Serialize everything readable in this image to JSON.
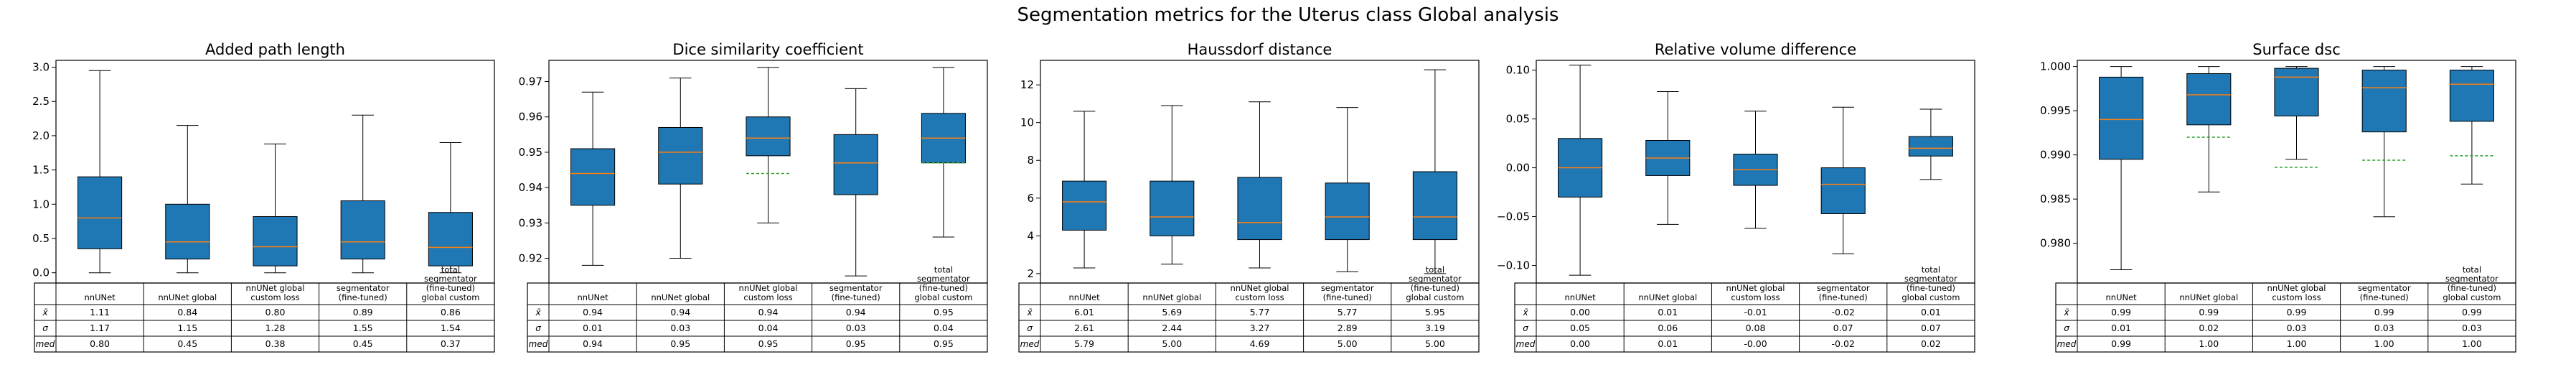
{
  "figure": {
    "suptitle": "Segmentation metrics for the Uterus class Global analysis"
  },
  "colors": {
    "box_fill": "#1f77b4",
    "median_line": "#ff7f0e",
    "mean_line": "#2ca02c",
    "edge": "#000000"
  },
  "table": {
    "row_labels": [
      "x̄",
      "σ",
      "med"
    ],
    "categories": [
      "nnUNet",
      "nnUNet global",
      "nnUNet global\ncustom loss",
      "segmentator\n(fine-tuned)",
      "total\nsegmentator\n(fine-tuned)\nglobal custom"
    ]
  },
  "chart_data": [
    {
      "type": "box",
      "title": "Added path length",
      "categories": [
        "nnUNet",
        "nnUNet global",
        "nnUNet global custom loss",
        "segmentator (fine-tuned)",
        "total segmentator (fine-tuned) global custom"
      ],
      "ylim": [
        -0.15,
        3.1
      ],
      "yticks": [
        "0.0",
        "0.5",
        "1.0",
        "1.5",
        "2.0",
        "2.5",
        "3.0"
      ],
      "boxes": [
        {
          "whislo": 0.0,
          "q1": 0.35,
          "med": 0.8,
          "q3": 1.4,
          "whishi": 2.95,
          "mean": null
        },
        {
          "whislo": 0.0,
          "q1": 0.2,
          "med": 0.45,
          "q3": 1.0,
          "whishi": 2.15,
          "mean": null
        },
        {
          "whislo": 0.0,
          "q1": 0.1,
          "med": 0.38,
          "q3": 0.82,
          "whishi": 1.88,
          "mean": null
        },
        {
          "whislo": 0.0,
          "q1": 0.2,
          "med": 0.45,
          "q3": 1.05,
          "whishi": 2.3,
          "mean": null
        },
        {
          "whislo": 0.0,
          "q1": 0.1,
          "med": 0.37,
          "q3": 0.88,
          "whishi": 1.9,
          "mean": null
        }
      ],
      "table_rows": [
        [
          "1.11",
          "0.84",
          "0.80",
          "0.89",
          "0.86"
        ],
        [
          "1.17",
          "1.15",
          "1.28",
          "1.55",
          "1.54"
        ],
        [
          "0.80",
          "0.45",
          "0.38",
          "0.45",
          "0.37"
        ]
      ]
    },
    {
      "type": "box",
      "title": "Dice similarity coefficient",
      "categories": [
        "nnUNet",
        "nnUNet global",
        "nnUNet global custom loss",
        "segmentator (fine-tuned)",
        "total segmentator (fine-tuned) global custom"
      ],
      "ylim": [
        0.913,
        0.976
      ],
      "yticks": [
        "0.92",
        "0.93",
        "0.94",
        "0.95",
        "0.96",
        "0.97"
      ],
      "boxes": [
        {
          "whislo": 0.918,
          "q1": 0.935,
          "med": 0.944,
          "q3": 0.951,
          "whishi": 0.967,
          "mean": null
        },
        {
          "whislo": 0.92,
          "q1": 0.941,
          "med": 0.95,
          "q3": 0.957,
          "whishi": 0.971,
          "mean": null
        },
        {
          "whislo": 0.93,
          "q1": 0.949,
          "med": 0.954,
          "q3": 0.96,
          "whishi": 0.974,
          "mean": 0.944
        },
        {
          "whislo": 0.915,
          "q1": 0.938,
          "med": 0.947,
          "q3": 0.955,
          "whishi": 0.968,
          "mean": null
        },
        {
          "whislo": 0.926,
          "q1": 0.947,
          "med": 0.954,
          "q3": 0.961,
          "whishi": 0.974,
          "mean": 0.947
        }
      ],
      "table_rows": [
        [
          "0.94",
          "0.94",
          "0.94",
          "0.94",
          "0.95"
        ],
        [
          "0.01",
          "0.03",
          "0.04",
          "0.03",
          "0.04"
        ],
        [
          "0.94",
          "0.95",
          "0.95",
          "0.95",
          "0.95"
        ]
      ]
    },
    {
      "type": "box",
      "title": "Haussdorf distance",
      "categories": [
        "nnUNet",
        "nnUNet global",
        "nnUNet global custom loss",
        "segmentator (fine-tuned)",
        "total segmentator (fine-tuned) global custom"
      ],
      "ylim": [
        1.5,
        13.3
      ],
      "yticks": [
        "2",
        "4",
        "6",
        "8",
        "10",
        "12"
      ],
      "boxes": [
        {
          "whislo": 2.3,
          "q1": 4.3,
          "med": 5.8,
          "q3": 6.9,
          "whishi": 10.6,
          "mean": null
        },
        {
          "whislo": 2.5,
          "q1": 4.0,
          "med": 5.0,
          "q3": 6.9,
          "whishi": 10.9,
          "mean": null
        },
        {
          "whislo": 2.3,
          "q1": 3.8,
          "med": 4.7,
          "q3": 7.1,
          "whishi": 11.1,
          "mean": null
        },
        {
          "whislo": 2.1,
          "q1": 3.8,
          "med": 5.0,
          "q3": 6.8,
          "whishi": 10.8,
          "mean": null
        },
        {
          "whislo": 2.0,
          "q1": 3.8,
          "med": 5.0,
          "q3": 7.4,
          "whishi": 12.8,
          "mean": null
        }
      ],
      "table_rows": [
        [
          "6.01",
          "5.69",
          "5.77",
          "5.77",
          "5.95"
        ],
        [
          "2.61",
          "2.44",
          "3.27",
          "2.89",
          "3.19"
        ],
        [
          "5.79",
          "5.00",
          "4.69",
          "5.00",
          "5.00"
        ]
      ]
    },
    {
      "type": "box",
      "title": "Relative volume difference",
      "categories": [
        "nnUNet",
        "nnUNet global",
        "nnUNet global custom loss",
        "segmentator (fine-tuned)",
        "total segmentator (fine-tuned) global custom"
      ],
      "ylim": [
        -0.118,
        0.11
      ],
      "yticks": [
        "−0.10",
        "−0.05",
        "0.00",
        "0.05",
        "0.10"
      ],
      "boxes": [
        {
          "whislo": -0.11,
          "q1": -0.03,
          "med": 0.0,
          "q3": 0.03,
          "whishi": 0.105,
          "mean": null
        },
        {
          "whislo": -0.058,
          "q1": -0.008,
          "med": 0.01,
          "q3": 0.028,
          "whishi": 0.078,
          "mean": null
        },
        {
          "whislo": -0.062,
          "q1": -0.018,
          "med": -0.002,
          "q3": 0.014,
          "whishi": 0.058,
          "mean": null
        },
        {
          "whislo": -0.088,
          "q1": -0.047,
          "med": -0.017,
          "q3": 0.0,
          "whishi": 0.062,
          "mean": null
        },
        {
          "whislo": -0.012,
          "q1": 0.012,
          "med": 0.02,
          "q3": 0.032,
          "whishi": 0.06,
          "mean": null
        }
      ],
      "table_rows": [
        [
          "0.00",
          "0.01",
          "-0.01",
          "-0.02",
          "0.01"
        ],
        [
          "0.05",
          "0.06",
          "0.08",
          "0.07",
          "0.07"
        ],
        [
          "0.00",
          "0.01",
          "-0.00",
          "-0.02",
          "0.02"
        ]
      ]
    },
    {
      "type": "box",
      "title": "Surface dsc",
      "categories": [
        "nnUNet",
        "nnUNet global",
        "nnUNet global custom loss",
        "segmentator (fine-tuned)",
        "total segmentator (fine-tuned) global custom"
      ],
      "ylim": [
        0.9755,
        1.0007
      ],
      "yticks": [
        "0.980",
        "0.985",
        "0.990",
        "0.995",
        "1.000"
      ],
      "boxes": [
        {
          "whislo": 0.977,
          "q1": 0.9895,
          "med": 0.994,
          "q3": 0.9988,
          "whishi": 1.0,
          "mean": null
        },
        {
          "whislo": 0.9858,
          "q1": 0.9934,
          "med": 0.9968,
          "q3": 0.9992,
          "whishi": 1.0,
          "mean": 0.992
        },
        {
          "whislo": 0.9895,
          "q1": 0.9944,
          "med": 0.9988,
          "q3": 0.9998,
          "whishi": 1.0,
          "mean": 0.9886
        },
        {
          "whislo": 0.983,
          "q1": 0.9926,
          "med": 0.9976,
          "q3": 0.9996,
          "whishi": 1.0,
          "mean": 0.9894
        },
        {
          "whislo": 0.9867,
          "q1": 0.9938,
          "med": 0.998,
          "q3": 0.9996,
          "whishi": 1.0,
          "mean": 0.9899
        }
      ],
      "table_rows": [
        [
          "0.99",
          "0.99",
          "0.99",
          "0.99",
          "0.99"
        ],
        [
          "0.01",
          "0.02",
          "0.03",
          "0.03",
          "0.03"
        ],
        [
          "0.99",
          "1.00",
          "1.00",
          "1.00",
          "1.00"
        ]
      ]
    }
  ]
}
